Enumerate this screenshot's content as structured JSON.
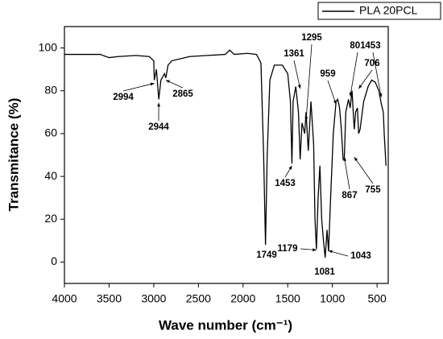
{
  "chart_data": {
    "type": "line",
    "xlabel": "Wave number (cm⁻¹)",
    "ylabel": "Transmitance (%)",
    "xlim": [
      4000,
      375
    ],
    "ylim": [
      -10,
      110
    ],
    "xticks": [
      4000,
      3500,
      3000,
      2500,
      2000,
      1500,
      1000,
      500
    ],
    "yticks": [
      0,
      20,
      40,
      60,
      80,
      100
    ],
    "legend": "upper right",
    "x": [
      4000,
      3600,
      3500,
      3400,
      3200,
      3050,
      3000,
      2994,
      2970,
      2944,
      2920,
      2880,
      2865,
      2840,
      2800,
      2600,
      2400,
      2200,
      2150,
      2100,
      1950,
      1850,
      1800,
      1770,
      1749,
      1730,
      1700,
      1650,
      1560,
      1500,
      1470,
      1453,
      1440,
      1410,
      1380,
      1361,
      1340,
      1310,
      1295,
      1270,
      1240,
      1210,
      1195,
      1179,
      1160,
      1140,
      1120,
      1100,
      1081,
      1060,
      1043,
      1020,
      990,
      959,
      940,
      920,
      900,
      880,
      867,
      850,
      820,
      801,
      780,
      760,
      755,
      740,
      720,
      706,
      690,
      650,
      600,
      560,
      520,
      480,
      453,
      430,
      420,
      400
    ],
    "series": [
      {
        "name": "PLA 20PCL",
        "color": "#000000",
        "values": [
          97,
          97,
          95.5,
          96,
          96.5,
          96,
          94,
          85,
          90,
          76,
          85,
          88,
          86,
          92,
          94,
          96,
          96.5,
          97,
          99,
          97,
          97.5,
          97,
          93,
          50,
          8,
          50,
          85,
          92,
          92,
          88,
          75,
          46,
          75,
          82,
          70,
          48,
          65,
          60,
          70,
          52,
          75,
          55,
          20,
          6,
          30,
          45,
          20,
          10,
          2,
          15,
          5,
          30,
          60,
          75,
          76,
          72,
          62,
          48,
          48,
          70,
          76,
          72,
          80,
          65,
          62,
          70,
          72,
          60,
          62,
          75,
          82,
          85,
          84,
          80,
          74,
          70,
          60,
          45
        ]
      }
    ],
    "annotations": [
      {
        "label": "2994",
        "x": 2994,
        "y": 83.5
      },
      {
        "label": "2944",
        "x": 2944,
        "y": 74.4
      },
      {
        "label": "2865",
        "x": 2865,
        "y": 85
      },
      {
        "label": "1749",
        "x": 1749,
        "y": 8
      },
      {
        "label": "1453",
        "x": 1453,
        "y": 45
      },
      {
        "label": "1361",
        "x": 1361,
        "y": 81
      },
      {
        "label": "1295",
        "x": 1295,
        "y": 66
      },
      {
        "label": "1179",
        "x": 1179,
        "y": 5.6
      },
      {
        "label": "1081",
        "x": 1081,
        "y": 2
      },
      {
        "label": "1043",
        "x": 1043,
        "y": 5.3
      },
      {
        "label": "959",
        "x": 959,
        "y": 73.7
      },
      {
        "label": "867",
        "x": 867,
        "y": 49
      },
      {
        "label": "801",
        "x": 801,
        "y": 77.4
      },
      {
        "label": "706",
        "x": 706,
        "y": 81
      },
      {
        "label": "755",
        "x": 755,
        "y": 49
      },
      {
        "label": "453",
        "x": 453,
        "y": 77
      }
    ]
  }
}
